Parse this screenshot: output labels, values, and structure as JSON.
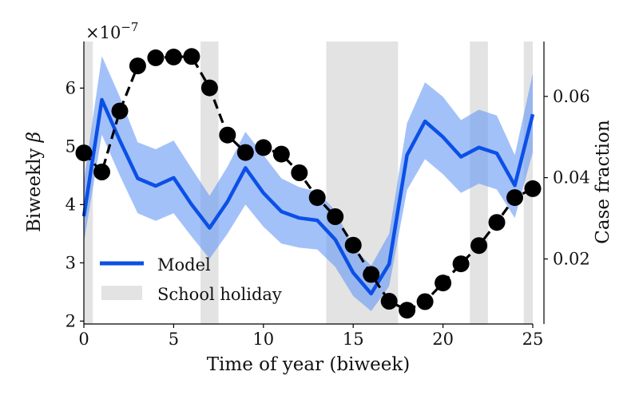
{
  "chart_data": {
    "type": "line",
    "xlabel": "Time of year (biweek)",
    "ylabel_left": "Biweekly β",
    "ylabel_left_text": "Biweekly",
    "ylabel_left_symbol": "β",
    "ylabel_right": "Case fraction",
    "scale_label": "×10⁻⁷",
    "scale_base": "×10",
    "scale_exp": "−7",
    "xlim": [
      0,
      25
    ],
    "ylim_left": [
      1.95,
      6.8
    ],
    "ylim_right": [
      0.004,
      0.0735
    ],
    "x_ticks": [
      0,
      5,
      10,
      15,
      20,
      25
    ],
    "x_tick_labels": [
      "0",
      "5",
      "10",
      "15",
      "20",
      "25"
    ],
    "y_left_ticks": [
      2,
      3,
      4,
      5,
      6
    ],
    "y_left_tick_labels": [
      "2",
      "3",
      "4",
      "5",
      "6"
    ],
    "y_right_ticks": [
      0.02,
      0.04,
      0.06
    ],
    "y_right_tick_labels": [
      "0.02",
      "0.04",
      "0.06"
    ],
    "holiday_ranges": [
      [
        0,
        0.5
      ],
      [
        6.5,
        7.5
      ],
      [
        13.5,
        17.5
      ],
      [
        21.5,
        22.5
      ],
      [
        24.5,
        25
      ]
    ],
    "model": {
      "name": "Model",
      "color": "#0b50e6",
      "band_color": "#6a9bf6",
      "x": [
        0,
        1,
        2,
        3,
        4,
        5,
        6,
        7,
        8,
        9,
        10,
        11,
        12,
        13,
        14,
        15,
        16,
        17,
        18,
        19,
        20,
        21,
        22,
        23,
        24,
        25
      ],
      "y": [
        3.8,
        5.8,
        5.1,
        4.45,
        4.32,
        4.46,
        4.0,
        3.6,
        4.05,
        4.63,
        4.2,
        3.88,
        3.77,
        3.73,
        3.4,
        2.83,
        2.47,
        2.98,
        4.85,
        5.43,
        5.16,
        4.82,
        4.98,
        4.88,
        4.33,
        5.55
      ],
      "upper": [
        4.4,
        6.55,
        5.85,
        5.07,
        4.95,
        5.1,
        4.62,
        4.15,
        4.65,
        5.25,
        4.85,
        4.45,
        4.3,
        4.22,
        3.9,
        3.27,
        2.95,
        3.5,
        5.4,
        6.1,
        5.85,
        5.45,
        5.63,
        5.53,
        4.85,
        6.25
      ],
      "lower": [
        3.35,
        5.2,
        4.5,
        3.85,
        3.72,
        3.85,
        3.45,
        3.07,
        3.5,
        4.0,
        3.62,
        3.33,
        3.26,
        3.23,
        2.93,
        2.43,
        2.17,
        2.6,
        4.25,
        4.78,
        4.52,
        4.2,
        4.36,
        4.26,
        3.77,
        4.9
      ]
    },
    "case_fraction": {
      "name": "Case fraction",
      "color": "#000000",
      "x": [
        0,
        1,
        2,
        3,
        4,
        5,
        6,
        7,
        8,
        9,
        10,
        11,
        12,
        13,
        14,
        15,
        16,
        17,
        18,
        19,
        20,
        21,
        22,
        23,
        24,
        25
      ],
      "y": [
        0.0461,
        0.0414,
        0.0564,
        0.0675,
        0.0695,
        0.0697,
        0.0698,
        0.0621,
        0.0505,
        0.0462,
        0.0474,
        0.0458,
        0.0412,
        0.0351,
        0.0304,
        0.0234,
        0.0162,
        0.0096,
        0.0074,
        0.0095,
        0.0141,
        0.0188,
        0.0233,
        0.029,
        0.0351,
        0.0373
      ]
    },
    "legend": {
      "position": "lower-left",
      "entries": [
        {
          "label": "Model",
          "swatch": "line"
        },
        {
          "label": "School holiday",
          "swatch": "patch"
        }
      ]
    },
    "holiday_color": "#e3e3e3"
  }
}
